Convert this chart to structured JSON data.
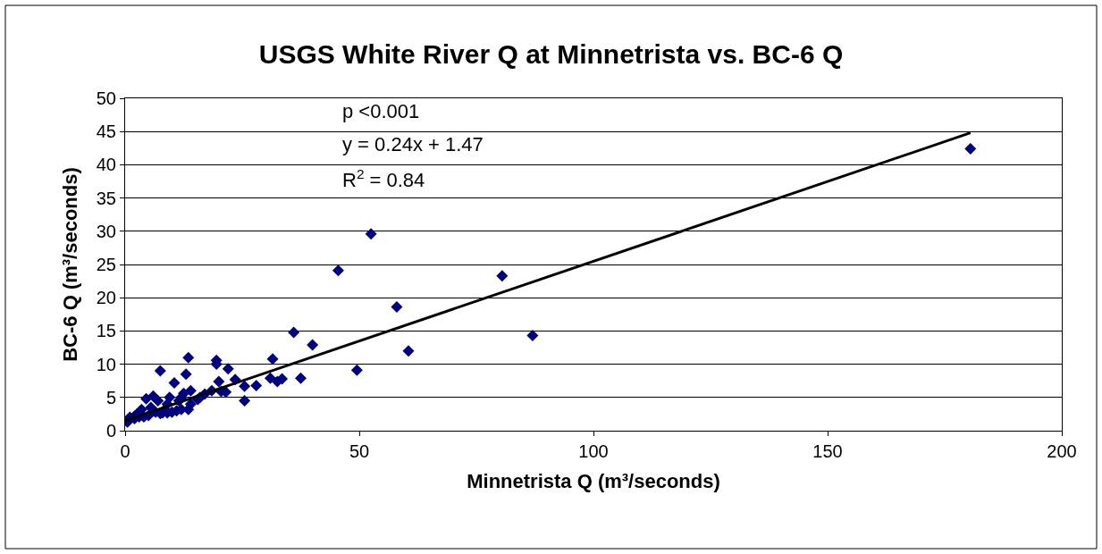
{
  "chart_data": {
    "type": "scatter",
    "title": "USGS White River Q at Minnetrista vs. BC-6 Q",
    "xlabel": "Minnetrista Q (m³/seconds)",
    "ylabel": "BC-6 Q (m³/seconds)",
    "xlim": [
      0,
      200
    ],
    "xticks": [
      0,
      50,
      100,
      150,
      200
    ],
    "ylim": [
      0,
      50
    ],
    "yticks": [
      0,
      5,
      10,
      15,
      20,
      25,
      30,
      35,
      40,
      45,
      50
    ],
    "grid": "y",
    "legend": false,
    "annotations": [
      "p <0.001",
      "y = 0.24x + 1.47",
      "R$^{2}$ = 0.84"
    ],
    "series": [
      {
        "color": "#000080",
        "marker": "diamond",
        "x": [
          180.5,
          87,
          80.5,
          60.5,
          58,
          52.5,
          49.5,
          45.5,
          40,
          37.5,
          36,
          33.5,
          32.5,
          31.5,
          31,
          28,
          25.5,
          25.5,
          23.5,
          22,
          21.5,
          20.5,
          20,
          19.5,
          19.5,
          18.5,
          17,
          16,
          15.5,
          14,
          14,
          13.5,
          13.5,
          13,
          12.5,
          12,
          11.5,
          11,
          10.5,
          10,
          9.5,
          9,
          8.5,
          8,
          7.5,
          7,
          6.5,
          6,
          5.5,
          5,
          4.5,
          4,
          3.5,
          3,
          2.5,
          2,
          0.5,
          1,
          2,
          7.5,
          9,
          12
        ],
        "values": [
          42.4,
          14.3,
          23.3,
          12,
          18.6,
          29.6,
          9.1,
          24.1,
          12.9,
          7.9,
          14.8,
          7.8,
          7.4,
          10.8,
          7.9,
          6.8,
          6.7,
          4.5,
          7.7,
          9.3,
          5.8,
          5.9,
          7.4,
          10.6,
          10,
          6,
          5.5,
          5,
          4.7,
          6,
          4,
          3.2,
          11,
          8.5,
          5.6,
          5,
          4.5,
          3,
          7.2,
          2.8,
          5,
          4,
          3.2,
          2.7,
          9,
          4.5,
          2.8,
          5.2,
          3.5,
          2.3,
          4.8,
          2.1,
          3.2,
          2.1,
          2.5,
          2.2,
          1.3,
          2,
          1.8,
          2.6,
          2.7,
          3.2
        ]
      },
      {
        "type": "line",
        "color": "#000000",
        "marker": "none",
        "x": [
          0,
          180.5
        ],
        "values": [
          1.5,
          44.8
        ]
      }
    ]
  }
}
